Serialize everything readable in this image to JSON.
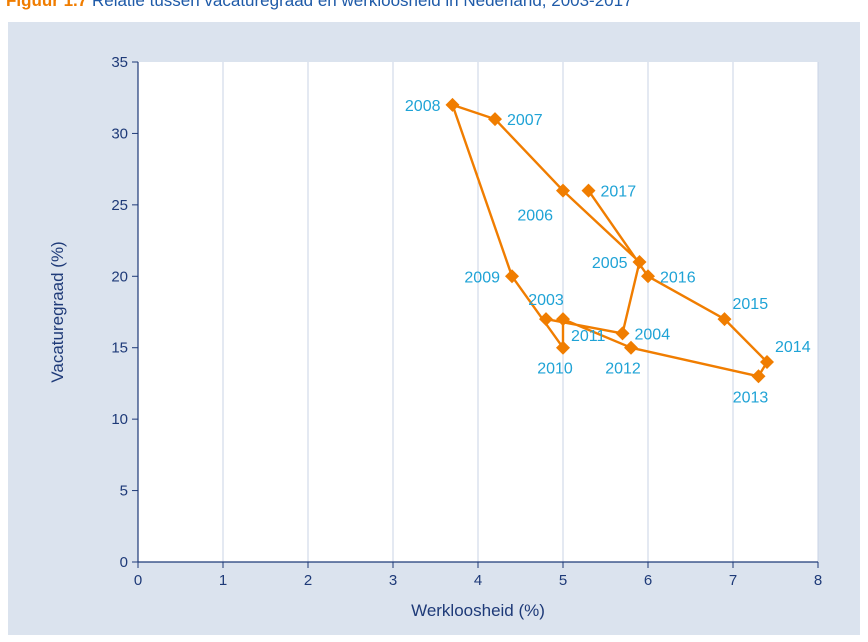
{
  "caption": {
    "label": "Figuur 1.7",
    "text": "Relatie tussen vacaturegraad en werkloosheid in Nederland, 2003-2017"
  },
  "colors": {
    "panel_bg": "#dbe3ee",
    "plot_bg": "#ffffff",
    "axis": "#1e3a78",
    "grid": "#c9d3e6",
    "line": "#f07d00",
    "marker": "#f07d00",
    "point_label": "#1fa3d6",
    "axis_title": "#1e3a78"
  },
  "chart_data": {
    "type": "scatter",
    "connected": true,
    "xlabel": "Werkloosheid (%)",
    "ylabel": "Vacaturegraad (%)",
    "xlim": [
      0,
      8
    ],
    "ylim": [
      0,
      35
    ],
    "xticks": [
      0,
      1,
      2,
      3,
      4,
      5,
      6,
      7,
      8
    ],
    "yticks": [
      0,
      5,
      10,
      15,
      20,
      25,
      30,
      35
    ],
    "grid": "vertical",
    "points": [
      {
        "label": "2003",
        "x": 4.8,
        "y": 17,
        "label_pos": "above"
      },
      {
        "label": "2004",
        "x": 5.7,
        "y": 16,
        "label_pos": "right"
      },
      {
        "label": "2005",
        "x": 5.9,
        "y": 21,
        "label_pos": "left"
      },
      {
        "label": "2006",
        "x": 5.0,
        "y": 26,
        "label_pos": "below-left"
      },
      {
        "label": "2007",
        "x": 4.2,
        "y": 31,
        "label_pos": "right"
      },
      {
        "label": "2008",
        "x": 3.7,
        "y": 32,
        "label_pos": "left"
      },
      {
        "label": "2009",
        "x": 4.4,
        "y": 20,
        "label_pos": "left"
      },
      {
        "label": "2010",
        "x": 5.0,
        "y": 15,
        "label_pos": "below"
      },
      {
        "label": "2011",
        "x": 5.0,
        "y": 17,
        "label_pos": "below-right"
      },
      {
        "label": "2012",
        "x": 5.8,
        "y": 15,
        "label_pos": "below"
      },
      {
        "label": "2013",
        "x": 7.3,
        "y": 13,
        "label_pos": "below"
      },
      {
        "label": "2014",
        "x": 7.4,
        "y": 14,
        "label_pos": "above-right"
      },
      {
        "label": "2015",
        "x": 6.9,
        "y": 17,
        "label_pos": "above-right"
      },
      {
        "label": "2016",
        "x": 6.0,
        "y": 20,
        "label_pos": "right"
      },
      {
        "label": "2017",
        "x": 5.3,
        "y": 26,
        "label_pos": "right"
      }
    ]
  }
}
